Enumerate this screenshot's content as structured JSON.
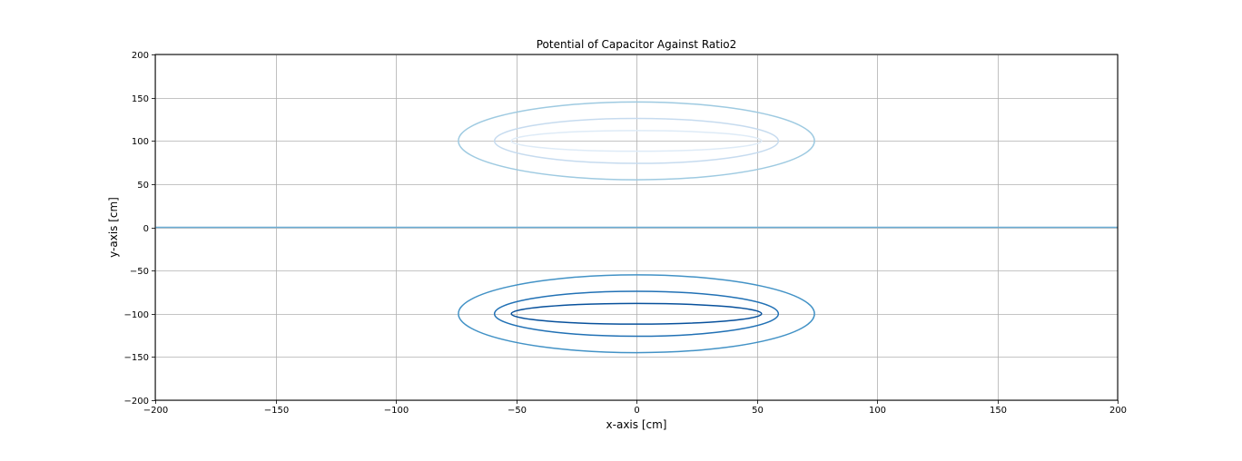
{
  "chart_data": {
    "type": "contour",
    "title": "Potential of Capacitor Against Ratio2",
    "xlabel": "x-axis [cm]",
    "ylabel": "y-axis [cm]",
    "xlim": [
      -200,
      200
    ],
    "ylim": [
      -200,
      200
    ],
    "xticks": [
      -200,
      -150,
      -100,
      -50,
      0,
      50,
      100,
      150,
      200
    ],
    "yticks": [
      -200,
      -150,
      -100,
      -50,
      0,
      50,
      100,
      150,
      200
    ],
    "xtick_labels": [
      "−200",
      "−150",
      "−100",
      "−50",
      "0",
      "50",
      "100",
      "150",
      "200"
    ],
    "ytick_labels": [
      "−200",
      "−150",
      "−100",
      "−50",
      "0",
      "50",
      "100",
      "150",
      "200"
    ],
    "grid": true,
    "colormap": "Blues",
    "contours": [
      {
        "center": [
          0,
          100
        ],
        "half_width": 74,
        "half_height": 45,
        "color": "#9ecae1"
      },
      {
        "center": [
          0,
          100
        ],
        "half_width": 59,
        "half_height": 26,
        "color": "#c6dbef"
      },
      {
        "center": [
          0,
          100
        ],
        "half_width": 52,
        "half_height": 12,
        "color": "#deebf7"
      },
      {
        "center": [
          0,
          -100
        ],
        "half_width": 74,
        "half_height": 45,
        "color": "#4292c6"
      },
      {
        "center": [
          0,
          -100
        ],
        "half_width": 59,
        "half_height": 26,
        "color": "#2171b5"
      },
      {
        "center": [
          0,
          -100
        ],
        "half_width": 52,
        "half_height": 12,
        "color": "#08519c"
      }
    ],
    "zero_contour": {
      "y": 0,
      "color": "#6baed6"
    }
  }
}
